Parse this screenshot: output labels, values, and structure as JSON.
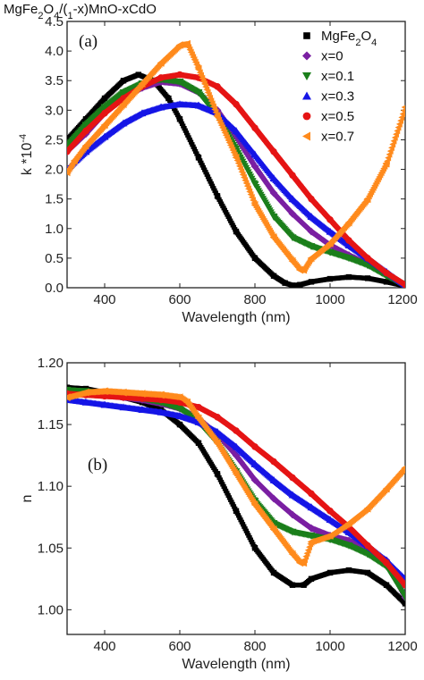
{
  "figure_title": "MgFe2O4/(1-x)MnO-xCdO",
  "chart_data": [
    {
      "type": "scatter",
      "panel_label": "(a)",
      "xlabel": "Wavelength (nm)",
      "ylabel": "k *10-4",
      "xlim": [
        300,
        1200
      ],
      "ylim": [
        0,
        4.5
      ],
      "xticks": [
        "400",
        "600",
        "800",
        "1000",
        "1200"
      ],
      "yticks": [
        "0.0",
        "0.5",
        "1.0",
        "1.5",
        "2.0",
        "2.5",
        "3.0",
        "3.5",
        "4.0",
        "4.5"
      ],
      "legend_position": "top-right",
      "series": [
        {
          "name": "MgFe2O4",
          "color": "#000000",
          "marker": "square",
          "x": [
            300,
            350,
            400,
            450,
            490,
            530,
            570,
            600,
            650,
            700,
            750,
            800,
            850,
            880,
            900,
            920,
            950,
            1000,
            1050,
            1100,
            1150,
            1200
          ],
          "y": [
            2.5,
            2.85,
            3.2,
            3.5,
            3.6,
            3.5,
            3.2,
            2.85,
            2.2,
            1.55,
            0.95,
            0.5,
            0.2,
            0.08,
            0.04,
            0.05,
            0.1,
            0.15,
            0.18,
            0.16,
            0.1,
            0.03
          ]
        },
        {
          "name": "x=0",
          "color": "#7a1fa2",
          "marker": "diamond",
          "x": [
            300,
            350,
            400,
            450,
            500,
            550,
            600,
            650,
            700,
            750,
            800,
            850,
            900,
            950,
            1000,
            1050,
            1100,
            1150,
            1200
          ],
          "y": [
            2.3,
            2.6,
            2.95,
            3.2,
            3.38,
            3.48,
            3.45,
            3.3,
            3.0,
            2.55,
            2.05,
            1.6,
            1.25,
            0.95,
            0.72,
            0.55,
            0.4,
            0.22,
            0.05
          ]
        },
        {
          "name": "x=0.1",
          "color": "#1b7f1b",
          "marker": "triangle-down",
          "x": [
            300,
            350,
            400,
            450,
            500,
            550,
            600,
            650,
            700,
            750,
            800,
            850,
            900,
            950,
            1000,
            1050,
            1100,
            1150,
            1200
          ],
          "y": [
            2.4,
            2.75,
            3.05,
            3.3,
            3.45,
            3.52,
            3.48,
            3.3,
            2.9,
            2.35,
            1.75,
            1.2,
            0.85,
            0.7,
            0.6,
            0.5,
            0.38,
            0.2,
            0.04
          ]
        },
        {
          "name": "x=0.3",
          "color": "#1515e6",
          "marker": "triangle-up",
          "x": [
            300,
            350,
            400,
            450,
            500,
            550,
            600,
            650,
            700,
            750,
            800,
            850,
            900,
            950,
            1000,
            1050,
            1100,
            1150,
            1200
          ],
          "y": [
            2.0,
            2.3,
            2.55,
            2.78,
            2.95,
            3.05,
            3.1,
            3.08,
            2.95,
            2.65,
            2.25,
            1.85,
            1.5,
            1.2,
            0.95,
            0.72,
            0.5,
            0.27,
            0.04
          ]
        },
        {
          "name": "x=0.5",
          "color": "#e51414",
          "marker": "circle",
          "x": [
            300,
            350,
            400,
            450,
            500,
            550,
            600,
            650,
            700,
            750,
            800,
            850,
            900,
            950,
            1000,
            1050,
            1100,
            1150,
            1200
          ],
          "y": [
            2.3,
            2.65,
            2.95,
            3.2,
            3.4,
            3.55,
            3.6,
            3.55,
            3.4,
            3.1,
            2.7,
            2.3,
            1.9,
            1.5,
            1.15,
            0.8,
            0.5,
            0.25,
            0.05
          ]
        },
        {
          "name": "x=0.7",
          "color": "#ff8a1c",
          "marker": "triangle-left",
          "x": [
            300,
            320,
            350,
            400,
            450,
            500,
            550,
            600,
            620,
            650,
            700,
            750,
            800,
            850,
            900,
            920,
            930,
            950,
            1000,
            1050,
            1100,
            1150,
            1200
          ],
          "y": [
            1.95,
            2.15,
            2.4,
            2.75,
            3.1,
            3.45,
            3.8,
            4.1,
            4.12,
            3.7,
            2.9,
            2.2,
            1.4,
            0.85,
            0.45,
            0.3,
            0.3,
            0.5,
            0.75,
            1.1,
            1.5,
            2.1,
            3.05
          ]
        }
      ]
    },
    {
      "type": "scatter",
      "panel_label": "(b)",
      "xlabel": "Wavelength (nm)",
      "ylabel": "n",
      "xlim": [
        300,
        1200
      ],
      "ylim": [
        0.98,
        1.2
      ],
      "xticks": [
        "400",
        "600",
        "800",
        "1000",
        "1200"
      ],
      "yticks": [
        "1.00",
        "1.05",
        "1.10",
        "1.15",
        "1.20"
      ],
      "series": [
        {
          "name": "MgFe2O4",
          "color": "#000000",
          "marker": "square",
          "x": [
            300,
            350,
            400,
            450,
            500,
            550,
            600,
            650,
            700,
            750,
            800,
            850,
            900,
            930,
            950,
            1000,
            1050,
            1100,
            1150,
            1200
          ],
          "y": [
            1.18,
            1.179,
            1.176,
            1.172,
            1.168,
            1.162,
            1.15,
            1.135,
            1.11,
            1.08,
            1.05,
            1.03,
            1.02,
            1.02,
            1.025,
            1.03,
            1.032,
            1.03,
            1.02,
            1.005
          ]
        },
        {
          "name": "x=0",
          "color": "#7a1fa2",
          "marker": "diamond",
          "x": [
            300,
            350,
            400,
            450,
            500,
            550,
            600,
            650,
            700,
            750,
            800,
            850,
            900,
            950,
            1000,
            1050,
            1100,
            1150,
            1200
          ],
          "y": [
            1.177,
            1.176,
            1.174,
            1.172,
            1.17,
            1.167,
            1.163,
            1.155,
            1.142,
            1.125,
            1.105,
            1.09,
            1.077,
            1.066,
            1.06,
            1.056,
            1.05,
            1.04,
            1.01
          ]
        },
        {
          "name": "x=0.1",
          "color": "#1b7f1b",
          "marker": "triangle-down",
          "x": [
            300,
            350,
            400,
            450,
            500,
            550,
            600,
            650,
            700,
            750,
            800,
            850,
            900,
            950,
            1000,
            1050,
            1100,
            1150,
            1200
          ],
          "y": [
            1.178,
            1.177,
            1.175,
            1.173,
            1.171,
            1.168,
            1.163,
            1.152,
            1.135,
            1.112,
            1.088,
            1.07,
            1.063,
            1.06,
            1.057,
            1.052,
            1.045,
            1.035,
            1.01
          ]
        },
        {
          "name": "x=0.3",
          "color": "#1515e6",
          "marker": "triangle-up",
          "x": [
            300,
            350,
            400,
            450,
            500,
            550,
            600,
            650,
            700,
            750,
            800,
            850,
            900,
            950,
            1000,
            1050,
            1100,
            1150,
            1200
          ],
          "y": [
            1.17,
            1.168,
            1.166,
            1.164,
            1.162,
            1.16,
            1.157,
            1.152,
            1.144,
            1.132,
            1.118,
            1.105,
            1.093,
            1.083,
            1.073,
            1.063,
            1.052,
            1.04,
            1.025
          ]
        },
        {
          "name": "x=0.5",
          "color": "#e51414",
          "marker": "circle",
          "x": [
            300,
            350,
            400,
            450,
            500,
            550,
            600,
            650,
            700,
            750,
            800,
            850,
            900,
            950,
            1000,
            1050,
            1100,
            1150,
            1200
          ],
          "y": [
            1.175,
            1.174,
            1.173,
            1.172,
            1.171,
            1.17,
            1.168,
            1.164,
            1.156,
            1.145,
            1.132,
            1.12,
            1.107,
            1.094,
            1.08,
            1.067,
            1.052,
            1.038,
            1.02
          ]
        },
        {
          "name": "x=0.7",
          "color": "#ff8a1c",
          "marker": "triangle-left",
          "x": [
            300,
            350,
            400,
            450,
            500,
            550,
            600,
            620,
            650,
            700,
            750,
            800,
            850,
            900,
            920,
            930,
            950,
            1000,
            1050,
            1100,
            1150,
            1200
          ],
          "y": [
            1.172,
            1.176,
            1.177,
            1.176,
            1.175,
            1.174,
            1.172,
            1.168,
            1.155,
            1.135,
            1.11,
            1.085,
            1.065,
            1.045,
            1.038,
            1.038,
            1.055,
            1.06,
            1.07,
            1.082,
            1.098,
            1.115
          ]
        }
      ]
    }
  ]
}
